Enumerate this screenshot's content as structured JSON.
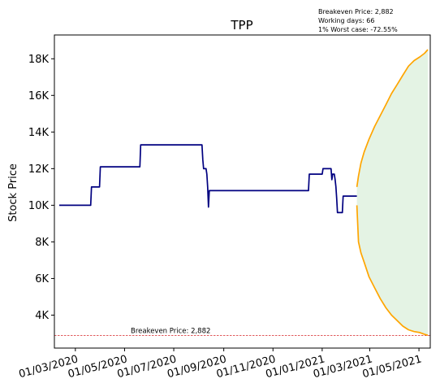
{
  "chart_data": {
    "type": "line",
    "title": "TPP",
    "xlabel": "",
    "ylabel": "Stock Price",
    "grid": false,
    "x_tick_labels": [
      "01/03/2020",
      "01/05/2020",
      "01/07/2020",
      "01/09/2020",
      "01/11/2020",
      "01/01/2021",
      "01/03/2021",
      "01/05/2021"
    ],
    "x_ticks": [
      "2020-03-01",
      "2020-05-01",
      "2020-07-01",
      "2020-09-01",
      "2020-11-01",
      "2021-01-01",
      "2021-03-01",
      "2021-05-01"
    ],
    "y_tick_labels": [
      "4K",
      "6K",
      "8K",
      "10K",
      "12K",
      "14K",
      "16K",
      "18K"
    ],
    "y_ticks": [
      4000,
      6000,
      8000,
      10000,
      12000,
      14000,
      16000,
      18000
    ],
    "xlim": [
      "2020-02-04",
      "2021-05-15"
    ],
    "ylim": [
      2200,
      19300
    ],
    "annotation_box": {
      "breakeven_label": "Breakeven Price: 2,882",
      "working_days_label": "Working days: 66",
      "worst_case_label": "1% Worst case: -72.55%"
    },
    "breakeven": {
      "value": 2882,
      "label": "Breakeven Price: 2,882",
      "color": "#d62728"
    },
    "series": [
      {
        "color": "#000080",
        "points": [
          [
            "2020-02-10",
            10000
          ],
          [
            "2020-03-20",
            10000
          ],
          [
            "2020-03-21",
            11000
          ],
          [
            "2020-03-31",
            11000
          ],
          [
            "2020-04-01",
            12100
          ],
          [
            "2020-05-20",
            12100
          ],
          [
            "2020-05-21",
            13300
          ],
          [
            "2020-08-05",
            13300
          ],
          [
            "2020-08-06",
            12500
          ],
          [
            "2020-08-07",
            12000
          ],
          [
            "2020-08-10",
            12000
          ],
          [
            "2020-08-11",
            11700
          ],
          [
            "2020-08-12",
            11000
          ],
          [
            "2020-08-13",
            9900
          ],
          [
            "2020-08-14",
            10800
          ],
          [
            "2020-12-15",
            10800
          ],
          [
            "2020-12-16",
            11700
          ],
          [
            "2020-12-30",
            11700
          ],
          [
            "2021-01-01",
            11700
          ],
          [
            "2021-01-02",
            12000
          ],
          [
            "2021-01-12",
            12000
          ],
          [
            "2021-01-13",
            11400
          ],
          [
            "2021-01-14",
            11700
          ],
          [
            "2021-01-16",
            11700
          ],
          [
            "2021-01-17",
            11400
          ],
          [
            "2021-01-18",
            11000
          ],
          [
            "2021-01-19",
            10400
          ],
          [
            "2021-01-20",
            9600
          ],
          [
            "2021-01-26",
            9600
          ],
          [
            "2021-01-27",
            10500
          ],
          [
            "2021-02-13",
            10500
          ]
        ]
      },
      {
        "color": "#ffa500",
        "points": [
          [
            "2021-02-13",
            11000
          ],
          [
            "2021-02-15",
            11600
          ],
          [
            "2021-02-18",
            12300
          ],
          [
            "2021-02-22",
            12900
          ],
          [
            "2021-02-28",
            13600
          ],
          [
            "2021-03-07",
            14300
          ],
          [
            "2021-03-14",
            14900
          ],
          [
            "2021-03-21",
            15500
          ],
          [
            "2021-03-28",
            16100
          ],
          [
            "2021-04-04",
            16600
          ],
          [
            "2021-04-11",
            17100
          ],
          [
            "2021-04-18",
            17600
          ],
          [
            "2021-04-25",
            17900
          ],
          [
            "2021-05-02",
            18100
          ],
          [
            "2021-05-08",
            18300
          ],
          [
            "2021-05-12",
            18500
          ]
        ]
      },
      {
        "color": "#ffa500",
        "points": [
          [
            "2021-02-13",
            10000
          ],
          [
            "2021-02-15",
            8000
          ],
          [
            "2021-02-18",
            7400
          ],
          [
            "2021-02-22",
            6900
          ],
          [
            "2021-02-28",
            6100
          ],
          [
            "2021-03-07",
            5500
          ],
          [
            "2021-03-14",
            4900
          ],
          [
            "2021-03-21",
            4400
          ],
          [
            "2021-03-28",
            4000
          ],
          [
            "2021-04-04",
            3700
          ],
          [
            "2021-04-11",
            3400
          ],
          [
            "2021-04-18",
            3200
          ],
          [
            "2021-04-25",
            3100
          ],
          [
            "2021-05-02",
            3050
          ],
          [
            "2021-05-08",
            2950
          ],
          [
            "2021-05-12",
            2900
          ]
        ]
      }
    ],
    "fill_between": {
      "color": "#2ca02c",
      "opacity": 0.13,
      "upper_series": 1,
      "lower_series": 2
    }
  }
}
